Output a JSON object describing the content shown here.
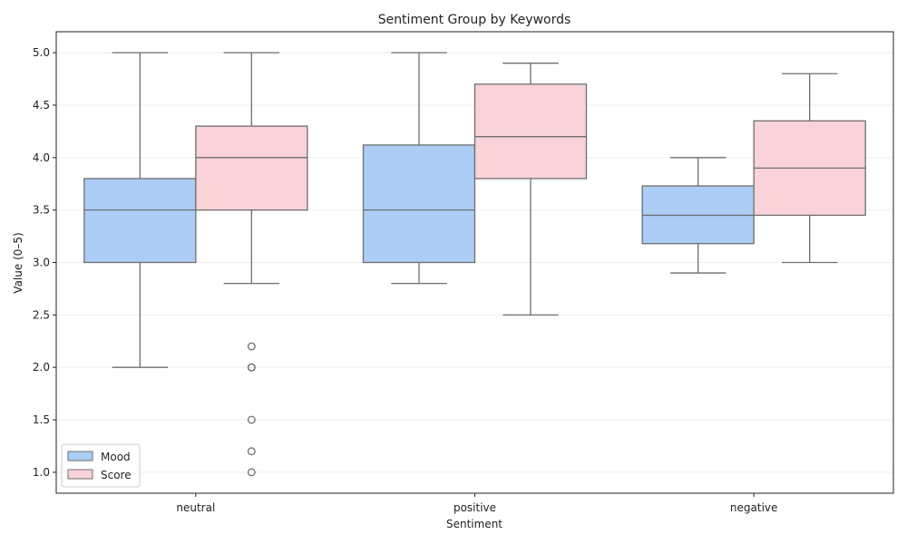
{
  "chart_data": {
    "type": "box",
    "title": "Sentiment Group by Keywords",
    "xlabel": "Sentiment",
    "ylabel": "Value (0–5)",
    "categories": [
      "neutral",
      "positive",
      "negative"
    ],
    "ylim": [
      0.8,
      5.2
    ],
    "yticks": [
      1.0,
      1.5,
      2.0,
      2.5,
      3.0,
      3.5,
      4.0,
      4.5,
      5.0
    ],
    "ytick_labels": [
      "1.0",
      "1.5",
      "2.0",
      "2.5",
      "3.0",
      "3.5",
      "4.0",
      "4.5",
      "5.0"
    ],
    "grid": true,
    "legend_position": "bottom-left",
    "series": [
      {
        "name": "Mood",
        "color": "#abcdf6",
        "boxes": [
          {
            "category": "neutral",
            "whisker_low": 2.0,
            "q1": 3.0,
            "median": 3.5,
            "q3": 3.8,
            "whisker_high": 5.0,
            "outliers": []
          },
          {
            "category": "positive",
            "whisker_low": 2.8,
            "q1": 3.0,
            "median": 3.5,
            "q3": 4.12,
            "whisker_high": 5.0,
            "outliers": []
          },
          {
            "category": "negative",
            "whisker_low": 2.9,
            "q1": 3.18,
            "median": 3.45,
            "q3": 3.73,
            "whisker_high": 4.0,
            "outliers": []
          }
        ]
      },
      {
        "name": "Score",
        "color": "#f9d3d9",
        "boxes": [
          {
            "category": "neutral",
            "whisker_low": 2.8,
            "q1": 3.5,
            "median": 4.0,
            "q3": 4.3,
            "whisker_high": 5.0,
            "outliers": [
              2.2,
              2.0,
              2.0,
              1.5,
              1.2,
              1.0
            ]
          },
          {
            "category": "positive",
            "whisker_low": 2.5,
            "q1": 3.8,
            "median": 4.2,
            "q3": 4.7,
            "whisker_high": 4.9,
            "outliers": []
          },
          {
            "category": "negative",
            "whisker_low": 3.0,
            "q1": 3.45,
            "median": 3.9,
            "q3": 4.35,
            "whisker_high": 4.8,
            "outliers": []
          }
        ]
      }
    ],
    "edge_color": "#6e6e6e",
    "grid_color": "#eeeeee"
  }
}
